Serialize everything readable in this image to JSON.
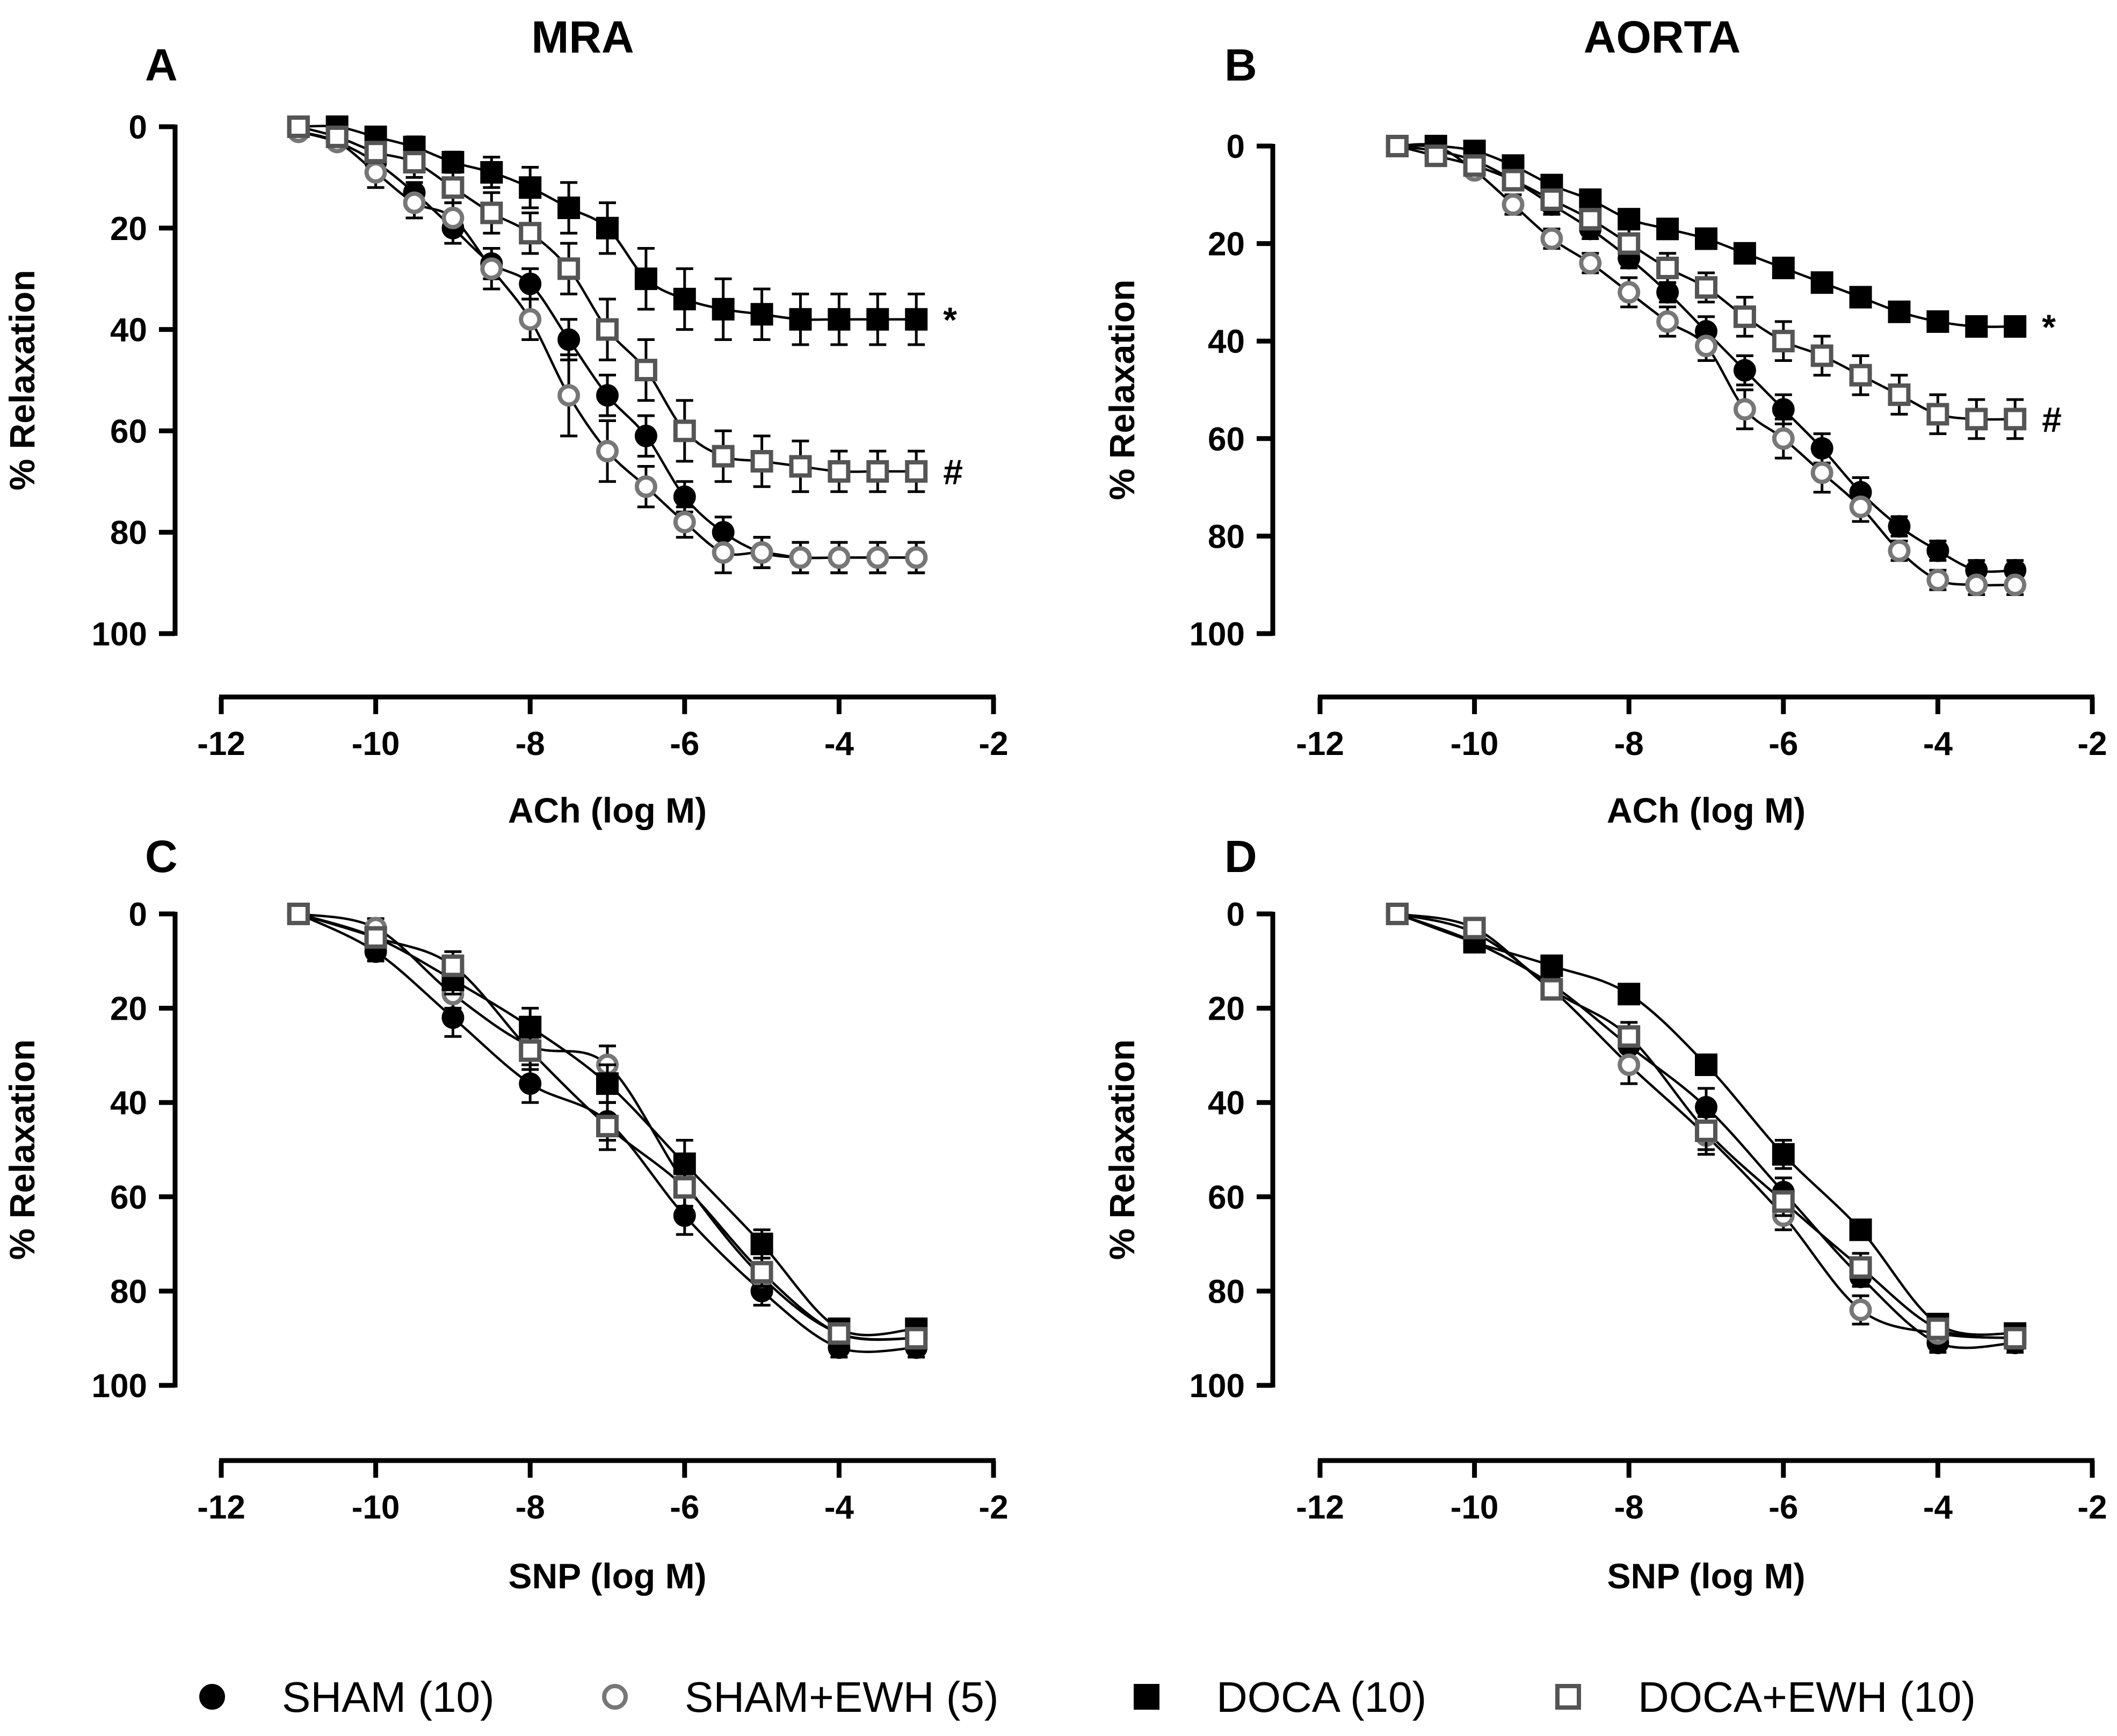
{
  "figure": {
    "column_titles": [
      "MRA",
      "AORTA"
    ],
    "legend": [
      {
        "label": "SHAM (10)",
        "marker": "filled-circle",
        "color": "#000000"
      },
      {
        "label": "SHAM+EWH (5)",
        "marker": "open-circle",
        "color": "#777777"
      },
      {
        "label": "DOCA (10)",
        "marker": "filled-square",
        "color": "#000000"
      },
      {
        "label": "DOCA+EWH (10)",
        "marker": "open-square",
        "color": "#555555"
      }
    ]
  },
  "chart_data": [
    {
      "panel": "A",
      "type": "line",
      "title": "MRA",
      "xlabel": "ACh (log M)",
      "ylabel": "% Relaxation",
      "xlim": [
        -12,
        -2
      ],
      "ylim": [
        0,
        100
      ],
      "y_inverted": true,
      "xticks": [
        "-12",
        "-10",
        "-8",
        "-6",
        "-4",
        "-2"
      ],
      "yticks": [
        "0",
        "20",
        "40",
        "60",
        "80",
        "100"
      ],
      "x": [
        -11,
        -10.5,
        -10,
        -9.5,
        -9,
        -8.5,
        -8,
        -7.5,
        -7,
        -6.5,
        -6,
        -5.5,
        -5,
        -4.5,
        -4,
        -3.5,
        -3
      ],
      "series": [
        {
          "name": "SHAM (10)",
          "marker": "filled-circle",
          "values": [
            1,
            3,
            7,
            13,
            20,
            27,
            31,
            42,
            53,
            61,
            73,
            80,
            84,
            85,
            85,
            85,
            85
          ],
          "errors": [
            1,
            1,
            2,
            2,
            3,
            3,
            3,
            4,
            4,
            4,
            3,
            3,
            3,
            3,
            3,
            3,
            3
          ]
        },
        {
          "name": "SHAM+EWH (5)",
          "marker": "open-circle",
          "values": [
            1,
            3,
            9,
            15,
            18,
            28,
            38,
            53,
            64,
            71,
            78,
            84,
            84,
            85,
            85,
            85,
            85
          ],
          "errors": [
            1,
            1,
            3,
            3,
            3,
            4,
            4,
            8,
            6,
            4,
            3,
            4,
            3,
            3,
            3,
            3,
            3
          ]
        },
        {
          "name": "DOCA (10)",
          "marker": "filled-square",
          "values": [
            0,
            0,
            2,
            4,
            7,
            9,
            12,
            16,
            20,
            30,
            34,
            36,
            37,
            38,
            38,
            38,
            38
          ],
          "errors": [
            1,
            1,
            1,
            2,
            2,
            3,
            4,
            5,
            5,
            6,
            6,
            6,
            5,
            5,
            5,
            5,
            5
          ]
        },
        {
          "name": "DOCA+EWH (10)",
          "marker": "open-square",
          "values": [
            0,
            2,
            5,
            7,
            12,
            17,
            21,
            28,
            40,
            48,
            60,
            65,
            66,
            67,
            68,
            68,
            68
          ],
          "errors": [
            1,
            1,
            2,
            3,
            3,
            4,
            4,
            5,
            6,
            6,
            6,
            5,
            5,
            5,
            4,
            4,
            4
          ]
        }
      ],
      "annotations": [
        {
          "text": "*",
          "series": "DOCA (10)"
        },
        {
          "text": "#",
          "series": "DOCA+EWH (10)"
        }
      ]
    },
    {
      "panel": "B",
      "type": "line",
      "title": "AORTA",
      "xlabel": "ACh (log M)",
      "ylabel": "% Relaxation",
      "xlim": [
        -12,
        -2
      ],
      "ylim": [
        0,
        100
      ],
      "y_inverted": true,
      "xticks": [
        "-12",
        "-10",
        "-8",
        "-6",
        "-4",
        "-2"
      ],
      "yticks": [
        "0",
        "20",
        "40",
        "60",
        "80",
        "100"
      ],
      "x": [
        -11,
        -10.5,
        -10,
        -9.5,
        -9,
        -8.5,
        -8,
        -7.5,
        -7,
        -6.5,
        -6,
        -5.5,
        -5,
        -4.5,
        -4,
        -3.5,
        -3
      ],
      "series": [
        {
          "name": "SHAM (10)",
          "marker": "filled-circle",
          "values": [
            0,
            1,
            3,
            7,
            12,
            17,
            23,
            30,
            38,
            46,
            54,
            62,
            71,
            78,
            83,
            87,
            87
          ],
          "errors": [
            1,
            1,
            1,
            1,
            2,
            2,
            2,
            2,
            3,
            3,
            3,
            3,
            3,
            2,
            2,
            2,
            2
          ]
        },
        {
          "name": "SHAM+EWH (5)",
          "marker": "open-circle",
          "values": [
            0,
            0,
            5,
            12,
            19,
            24,
            30,
            36,
            41,
            54,
            60,
            67,
            74,
            83,
            89,
            90,
            90
          ],
          "errors": [
            1,
            1,
            1,
            2,
            2,
            2,
            3,
            3,
            3,
            4,
            4,
            4,
            3,
            2,
            2,
            2,
            2
          ]
        },
        {
          "name": "DOCA (10)",
          "marker": "filled-square",
          "values": [
            0,
            0,
            1,
            4,
            8,
            11,
            15,
            17,
            19,
            22,
            25,
            28,
            31,
            34,
            36,
            37,
            37
          ],
          "errors": [
            1,
            1,
            1,
            1,
            1,
            1,
            1,
            1,
            1,
            1,
            2,
            2,
            2,
            2,
            2,
            2,
            2
          ]
        },
        {
          "name": "DOCA+EWH (10)",
          "marker": "open-square",
          "values": [
            0,
            2,
            4,
            7,
            11,
            15,
            20,
            25,
            29,
            35,
            40,
            43,
            47,
            51,
            55,
            56,
            56
          ],
          "errors": [
            1,
            1,
            1,
            2,
            2,
            3,
            3,
            3,
            3,
            4,
            4,
            4,
            4,
            4,
            4,
            4,
            4
          ]
        }
      ],
      "annotations": [
        {
          "text": "*",
          "series": "DOCA (10)"
        },
        {
          "text": "#",
          "series": "DOCA+EWH (10)"
        }
      ]
    },
    {
      "panel": "C",
      "type": "line",
      "title": "",
      "xlabel": "SNP (log M)",
      "ylabel": "% Relaxation",
      "xlim": [
        -12,
        -2
      ],
      "ylim": [
        0,
        100
      ],
      "y_inverted": true,
      "xticks": [
        "-12",
        "-10",
        "-8",
        "-6",
        "-4",
        "-2"
      ],
      "yticks": [
        "0",
        "20",
        "40",
        "60",
        "80",
        "100"
      ],
      "x": [
        -11,
        -10,
        -9,
        -8,
        -7,
        -6,
        -5,
        -4,
        -3
      ],
      "series": [
        {
          "name": "SHAM (10)",
          "marker": "filled-circle",
          "values": [
            0,
            8,
            22,
            36,
            44,
            64,
            80,
            92,
            92
          ],
          "errors": [
            1,
            2,
            4,
            4,
            4,
            4,
            3,
            2,
            2
          ]
        },
        {
          "name": "SHAM+EWH (5)",
          "marker": "open-circle",
          "values": [
            0,
            3,
            17,
            28,
            32,
            57,
            77,
            89,
            90
          ],
          "errors": [
            1,
            2,
            3,
            4,
            4,
            5,
            3,
            2,
            2
          ]
        },
        {
          "name": "DOCA (10)",
          "marker": "filled-square",
          "values": [
            0,
            5,
            14,
            24,
            36,
            53,
            70,
            88,
            88
          ],
          "errors": [
            1,
            2,
            3,
            4,
            4,
            5,
            3,
            2,
            2
          ]
        },
        {
          "name": "DOCA+EWH (10)",
          "marker": "open-square",
          "values": [
            0,
            5,
            11,
            29,
            45,
            58,
            76,
            89,
            90
          ],
          "errors": [
            1,
            2,
            3,
            4,
            5,
            5,
            3,
            2,
            2
          ]
        }
      ]
    },
    {
      "panel": "D",
      "type": "line",
      "title": "",
      "xlabel": "SNP (log M)",
      "ylabel": "% Relaxation",
      "xlim": [
        -12,
        -2
      ],
      "ylim": [
        0,
        100
      ],
      "y_inverted": true,
      "xticks": [
        "-12",
        "-10",
        "-8",
        "-6",
        "-4",
        "-2"
      ],
      "yticks": [
        "0",
        "20",
        "40",
        "60",
        "80",
        "100"
      ],
      "x": [
        -11,
        -10,
        -9,
        -8,
        -7,
        -6,
        -5,
        -4,
        -3
      ],
      "series": [
        {
          "name": "SHAM (10)",
          "marker": "filled-circle",
          "values": [
            0,
            6,
            15,
            28,
            41,
            59,
            77,
            91,
            91
          ],
          "errors": [
            1,
            2,
            2,
            3,
            4,
            3,
            2,
            2,
            2
          ]
        },
        {
          "name": "SHAM+EWH (5)",
          "marker": "open-circle",
          "values": [
            0,
            4,
            16,
            32,
            47,
            64,
            84,
            89,
            90
          ],
          "errors": [
            1,
            2,
            2,
            4,
            4,
            3,
            3,
            2,
            2
          ]
        },
        {
          "name": "DOCA (10)",
          "marker": "filled-square",
          "values": [
            0,
            6,
            11,
            17,
            32,
            51,
            67,
            87,
            89
          ],
          "errors": [
            1,
            2,
            2,
            2,
            2,
            3,
            2,
            2,
            2
          ]
        },
        {
          "name": "DOCA+EWH (10)",
          "marker": "open-square",
          "values": [
            0,
            3,
            16,
            26,
            46,
            61,
            75,
            88,
            90
          ],
          "errors": [
            1,
            2,
            2,
            3,
            4,
            3,
            3,
            2,
            2
          ]
        }
      ]
    }
  ]
}
